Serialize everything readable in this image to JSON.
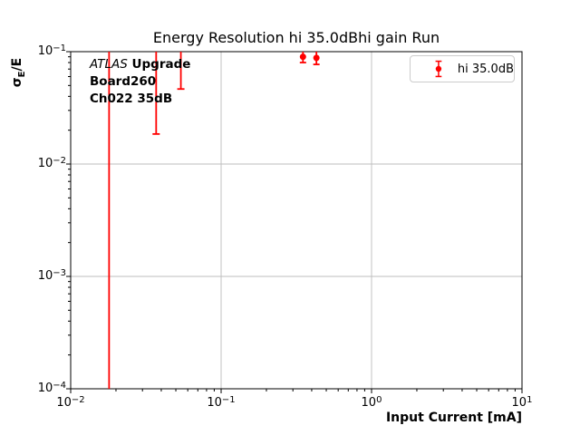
{
  "figure": {
    "title": "Energy Resolution hi 35.0dBhi gain Run",
    "xlabel": "Input Current [mA]",
    "ylabel_parts": {
      "sigma": "σ",
      "sub": "E",
      "rest": "/E"
    },
    "annotation": {
      "line1_italic": "ATLAS",
      "line1_bold": "Upgrade",
      "line2": "Board260",
      "line3": "Ch022 35dB"
    },
    "legend": {
      "label": "hi 35.0dB"
    }
  },
  "chart_data": {
    "type": "scatter",
    "title": "Energy Resolution hi 35.0dBhi gain Run",
    "xlabel": "Input Current [mA]",
    "ylabel": "σE/E",
    "xscale": "log",
    "yscale": "log",
    "xlim": [
      0.01,
      10
    ],
    "ylim": [
      0.0001,
      0.1
    ],
    "grid": true,
    "legend_position": "upper right",
    "xticks": [
      {
        "base": "10",
        "exp": "−2"
      },
      {
        "base": "10",
        "exp": "−1"
      },
      {
        "base": "10",
        "exp": "0"
      },
      {
        "base": "10",
        "exp": "1"
      }
    ],
    "yticks": [
      {
        "base": "10",
        "exp": "−1"
      },
      {
        "base": "10",
        "exp": "−2"
      },
      {
        "base": "10",
        "exp": "−3"
      },
      {
        "base": "10",
        "exp": "−4"
      }
    ],
    "series": [
      {
        "name": "hi 35.0dB",
        "color": "#ff0000",
        "marker": "circle",
        "points": [
          {
            "x": 0.35,
            "y": 0.09,
            "yerr_low": 0.08,
            "yerr_high_clipped": true
          },
          {
            "x": 0.43,
            "y": 0.088,
            "yerr_low": 0.077,
            "yerr_high_clipped": true
          }
        ],
        "offscale_errorbars": [
          {
            "x": 0.018,
            "y_low_clipped": true,
            "y_high_clipped": true
          },
          {
            "x": 0.037,
            "y_low": 0.0185,
            "y_high_clipped": true
          },
          {
            "x": 0.054,
            "y_low": 0.0465,
            "y_high_clipped": true
          }
        ]
      }
    ],
    "annotation_text": "ATLAS Upgrade\nBoard260\nCh022 35dB"
  },
  "style": {
    "accent_red": "#ff0000",
    "grid_color": "#bdbdbd",
    "spine_color": "#000000",
    "legend_border": "#cccccc"
  }
}
